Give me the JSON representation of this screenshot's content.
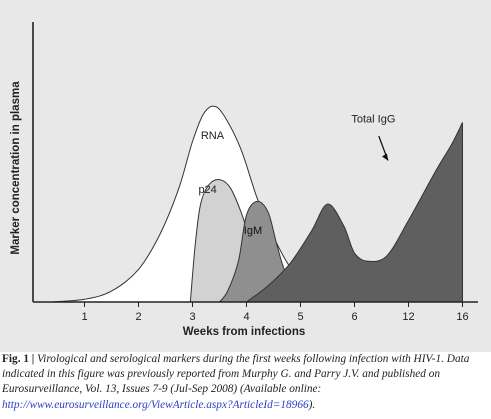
{
  "chart_data": {
    "type": "area",
    "ylabel": "Marker concentration in plasma",
    "xlabel": "Weeks from infections",
    "x_ticks": [
      "1",
      "2",
      "3",
      "4",
      "5",
      "6",
      "12",
      "16"
    ],
    "x_scale": "ordinal, evenly spaced tick positions",
    "y_scale": "relative, no tick labels",
    "grid": false,
    "legend": "none (series labelled directly on the curves)",
    "series": [
      {
        "name": "RNA",
        "color": "#ffffff",
        "x": [
          0.4,
          1,
          1.5,
          2,
          2.4,
          2.75,
          3,
          3.2,
          3.4,
          3.6,
          3.9,
          4.2,
          4.5,
          4.8,
          5.1,
          5.3
        ],
        "y": [
          0,
          1,
          4,
          12,
          25,
          42,
          59,
          69,
          72,
          68,
          56,
          38,
          24,
          13,
          6,
          2
        ]
      },
      {
        "name": "p24",
        "color": "#d2d2d2",
        "x": [
          2.96,
          3.05,
          3.15,
          3.3,
          3.5,
          3.7,
          3.9,
          4.1,
          4.3,
          4.5,
          4.7,
          4.9
        ],
        "y": [
          0,
          21,
          36,
          43,
          45,
          42,
          33,
          21,
          10,
          4,
          1,
          0
        ]
      },
      {
        "name": "IgM",
        "color": "#8f8f8f",
        "x": [
          3.5,
          3.65,
          3.85,
          4.0,
          4.2,
          4.4,
          4.55,
          4.7,
          4.9,
          5.1,
          5.3
        ],
        "y": [
          0,
          4,
          15,
          32,
          37,
          33,
          22,
          12,
          5,
          1,
          0
        ]
      },
      {
        "name": "Total IgG",
        "color": "#5f5f5f",
        "x": [
          4.0,
          4.4,
          4.8,
          5.2,
          5.5,
          5.8,
          6.0,
          6.25,
          6.6,
          7.0,
          7.5,
          7.8,
          8.0
        ],
        "y": [
          0,
          6,
          14,
          26,
          36,
          28,
          18,
          15,
          17,
          30,
          48,
          58,
          66
        ]
      }
    ]
  },
  "caption": {
    "fig_label": "Fig. 1 |",
    "text": " Virological and serological markers during the first weeks following infection with HIV-1. Data indicated in this figure was previously reported from Murphy G. and Parry J.V. and published on Eurosurveillance, Vol. 13, Issues 7-9 (Jul-Sep 2008) (Available online: ",
    "link": "http://www.eurosurveillance.org/ViewArticle.aspx?ArticleId=18966",
    "tail": ")."
  }
}
